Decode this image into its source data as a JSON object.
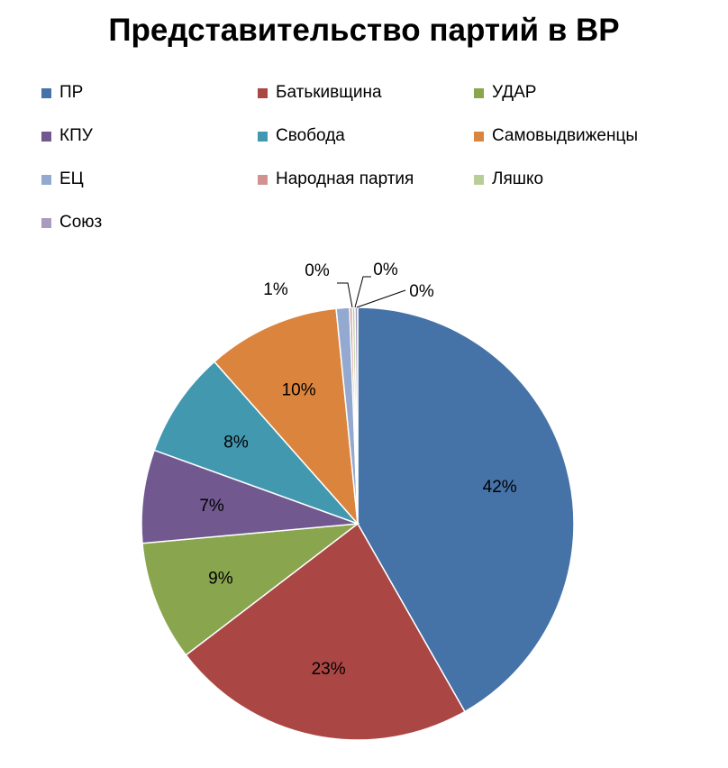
{
  "chart_data": {
    "type": "pie",
    "title": "Представительство партий в ВР",
    "legend_position": "top",
    "slices": [
      {
        "name": "ПР",
        "value": 42,
        "label": "42%",
        "color": "#4572A7"
      },
      {
        "name": "Батькивщина",
        "value": 23,
        "label": "23%",
        "color": "#AA4643"
      },
      {
        "name": "УДАР",
        "value": 9,
        "label": "9%",
        "color": "#89A54E"
      },
      {
        "name": "КПУ",
        "value": 7,
        "label": "7%",
        "color": "#71588F"
      },
      {
        "name": "Свобода",
        "value": 8,
        "label": "8%",
        "color": "#4198AF"
      },
      {
        "name": "Самовыдвиженцы",
        "value": 10,
        "label": "10%",
        "color": "#DB843D"
      },
      {
        "name": "ЕЦ",
        "value": 1,
        "label": "1%",
        "color": "#93A9CF"
      },
      {
        "name": "Народная партия",
        "value": 0.2,
        "label": "0%",
        "color": "#D19392"
      },
      {
        "name": "Ляшко",
        "value": 0.2,
        "label": "0%",
        "color": "#B9CD96"
      },
      {
        "name": "Союз",
        "value": 0.2,
        "label": "0%",
        "color": "#A99BBD"
      }
    ]
  }
}
